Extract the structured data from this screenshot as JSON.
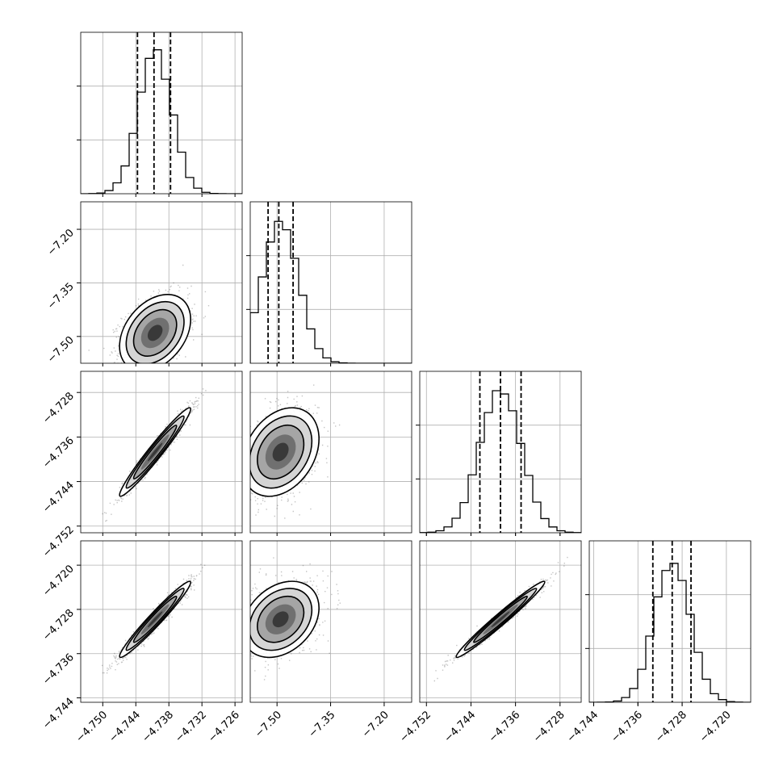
{
  "chart_data": {
    "type": "corner",
    "grid": true,
    "quantile_style": "dashed",
    "panels_per_side": 4,
    "params": [
      {
        "mean": -4.7405,
        "sd": 0.003,
        "quantiles": [
          -4.7437,
          -4.7407,
          -4.7377
        ],
        "range": [
          -4.754,
          -4.7247
        ],
        "ticks": [
          -4.75,
          -4.744,
          -4.738,
          -4.732,
          -4.726
        ],
        "tick_labels": [
          "−4.750",
          "−4.744",
          "−4.738",
          "−4.732",
          "−4.726"
        ]
      },
      {
        "mean": -7.49,
        "sd": 0.05,
        "quantiles": [
          -7.525,
          -7.495,
          -7.455
        ],
        "range": [
          -7.575,
          -7.123
        ],
        "ticks": [
          -7.5,
          -7.35,
          -7.2
        ],
        "tick_labels": [
          "−7.50",
          "−7.35",
          "−7.20"
        ]
      },
      {
        "mean": -4.7387,
        "sd": 0.0037,
        "quantiles": [
          -4.7424,
          -4.7387,
          -4.735
        ],
        "range": [
          -4.7532,
          -4.7242
        ],
        "ticks": [
          -4.752,
          -4.744,
          -4.736,
          -4.728
        ],
        "tick_labels": [
          "−4.752",
          "−4.744",
          "−4.736",
          "−4.728"
        ]
      },
      {
        "mean": -4.7298,
        "sd": 0.0032,
        "quantiles": [
          -4.7333,
          -4.7298,
          -4.7264
        ],
        "range": [
          -4.7448,
          -4.7156
        ],
        "ticks": [
          -4.744,
          -4.736,
          -4.728,
          -4.72
        ],
        "tick_labels": [
          "−4.744",
          "−4.736",
          "−4.728",
          "−4.720"
        ]
      }
    ],
    "correlations": {
      "1-0": 0.35,
      "2-0": 0.97,
      "2-1": 0.3,
      "3-0": 0.97,
      "3-1": 0.3,
      "3-2": 0.98
    },
    "diag_ylim_sigma_peak": 1.13
  }
}
